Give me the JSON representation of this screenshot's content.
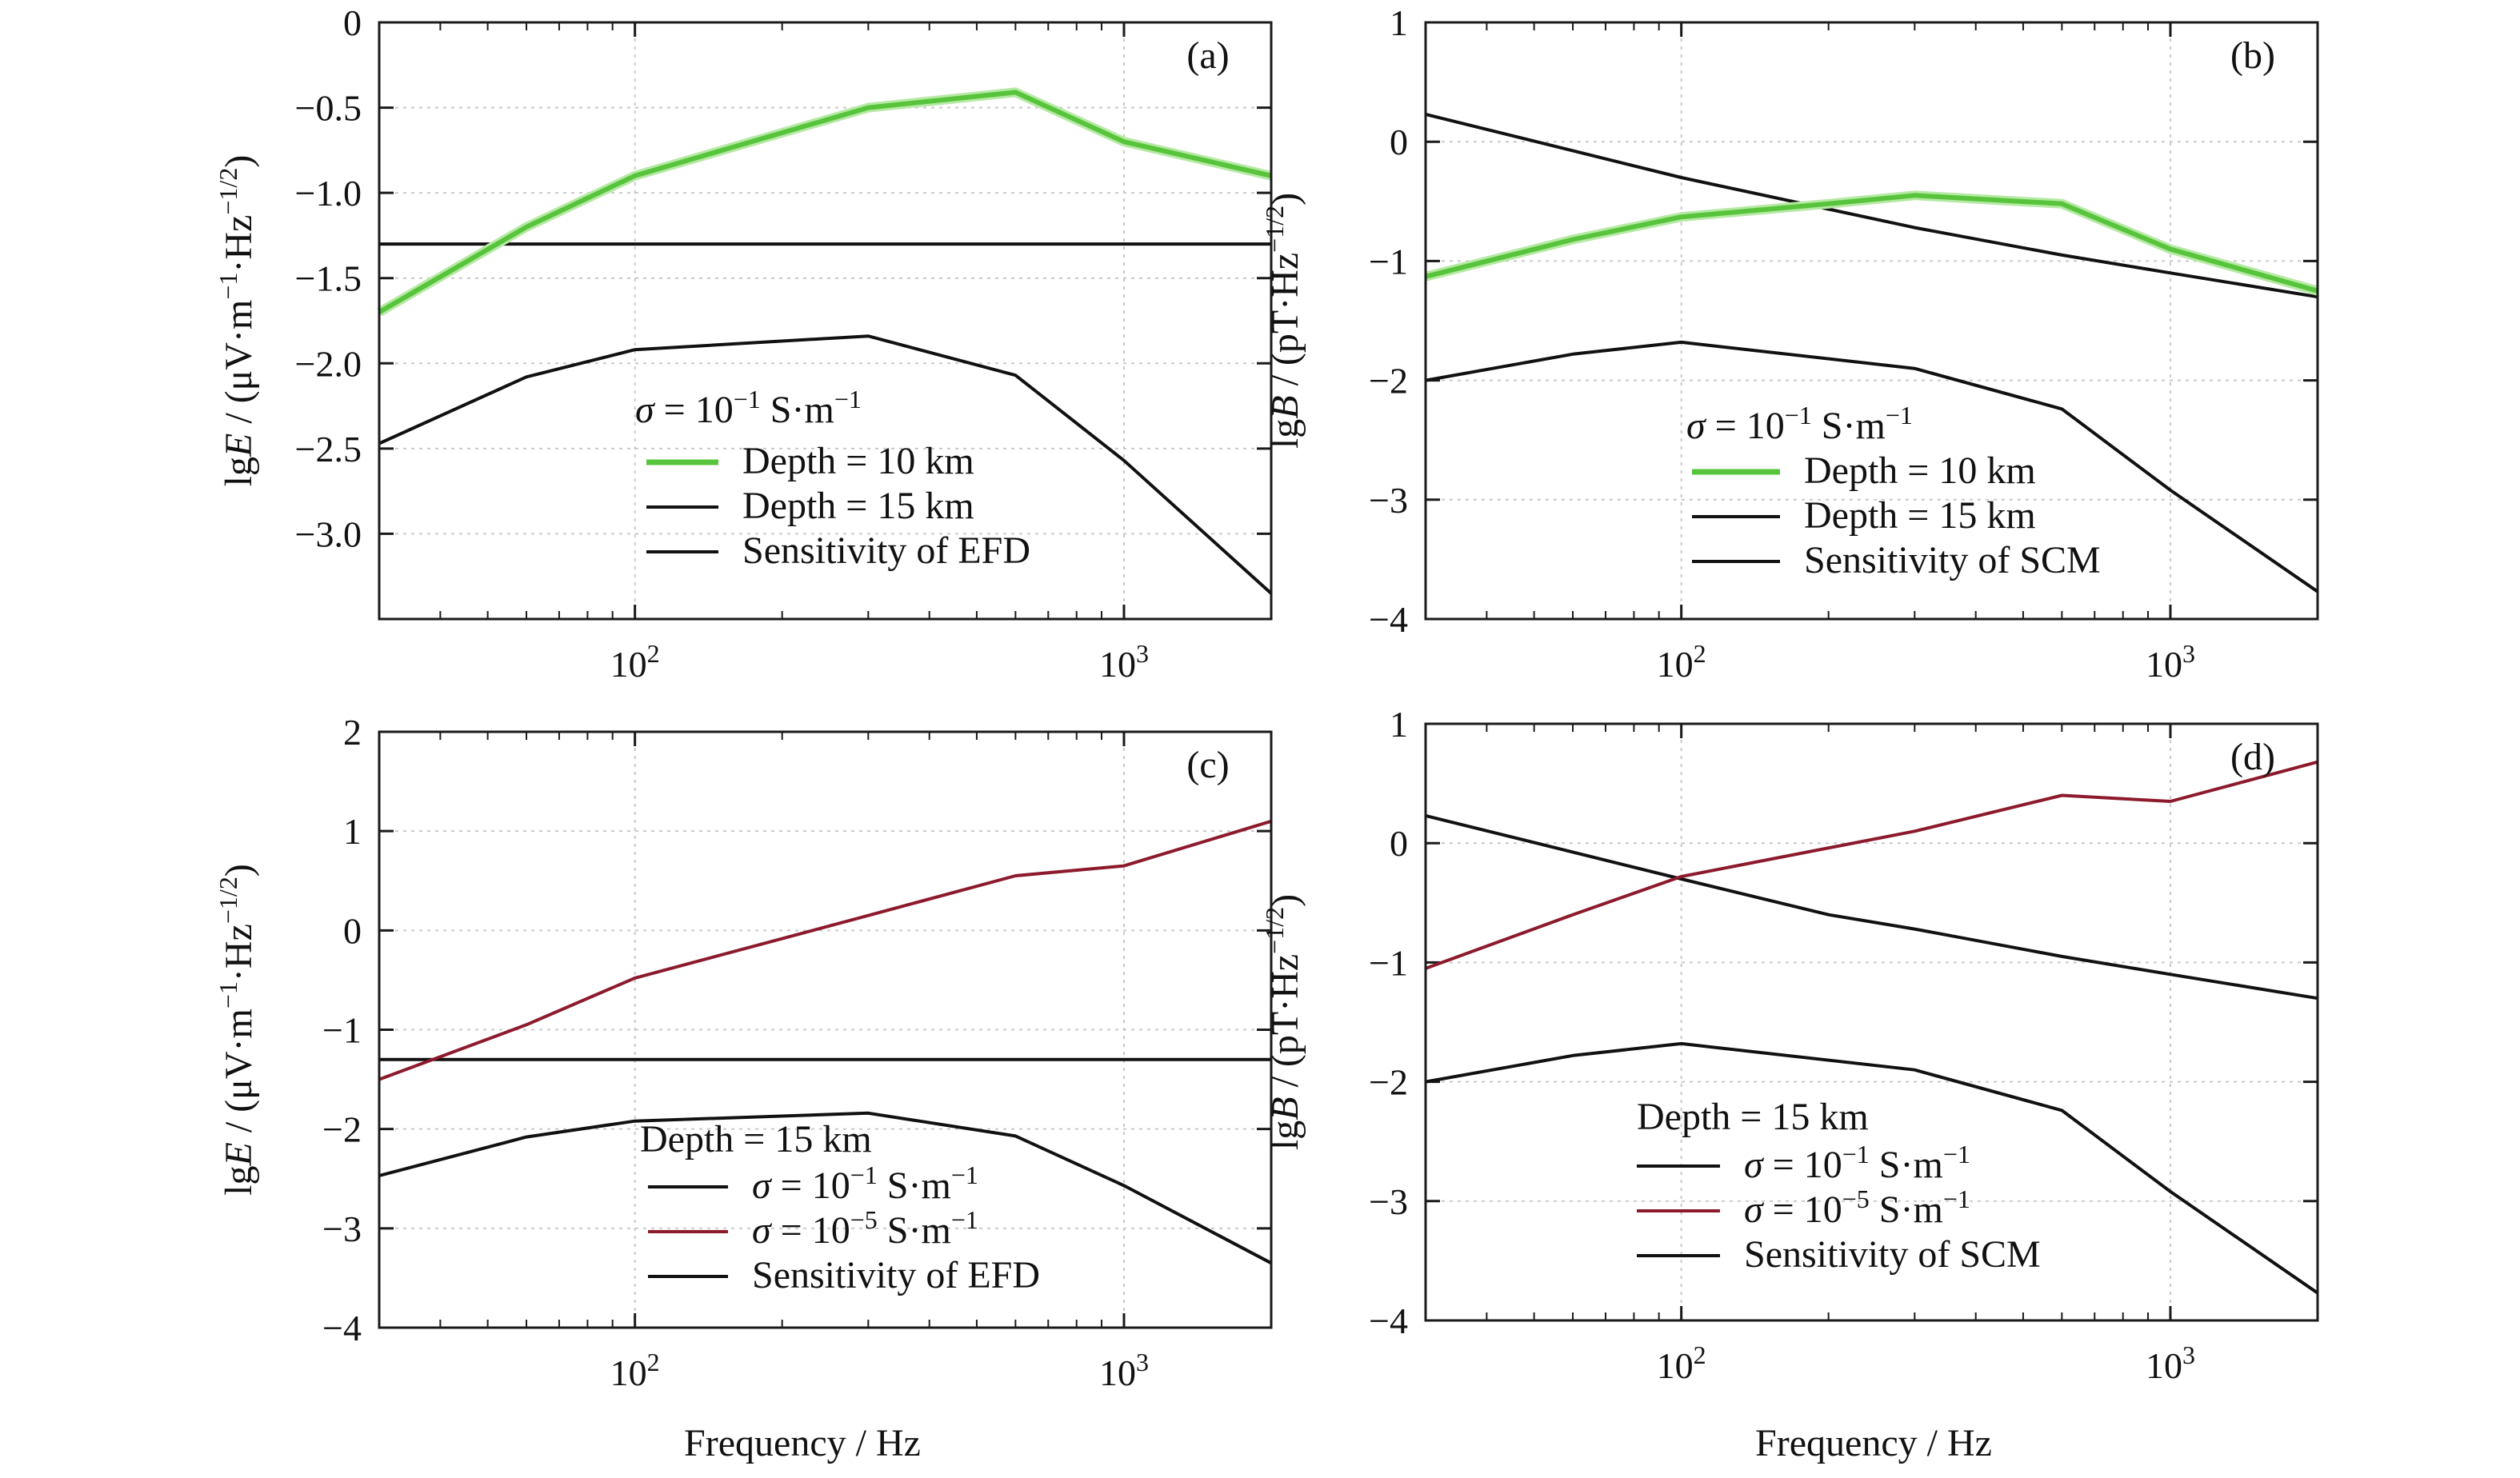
{
  "x_axis_label": "Frequency / Hz",
  "x_tick_labels": [
    {
      "base": "10",
      "exp": "2",
      "value": 100
    },
    {
      "base": "10",
      "exp": "3",
      "value": 1000
    }
  ],
  "colors": {
    "green": "#57c43c",
    "red": "#8c1a2c",
    "black": "#111111"
  },
  "chart_data": [
    {
      "panel": "(a)",
      "type": "line",
      "xscale": "log",
      "xlim": [
        30,
        2000
      ],
      "ylim": [
        -3.5,
        0
      ],
      "y_ticks": [
        0,
        -0.5,
        -1.0,
        -1.5,
        -2.0,
        -2.5,
        -3.0
      ],
      "y_tick_labels": [
        "0",
        "−0.5",
        "−1.0",
        "−1.5",
        "−2.0",
        "−2.5",
        "−3.0"
      ],
      "ylabel": {
        "prefix": "lg",
        "var": "E",
        "units": " / (μV·m",
        "sup1": "−1",
        "mid": "·Hz",
        "sup2": "−1/2",
        "end": ")"
      },
      "legend_title": {
        "kind": "sigma",
        "base": "10",
        "exp": "−1",
        "unit": "S·m",
        "uexp": "−1"
      },
      "series": [
        {
          "name": "Depth = 10 km",
          "color": "#57c43c",
          "x": [
            30,
            60,
            100,
            300,
            600,
            1000,
            2000
          ],
          "y": [
            -1.7,
            -1.2,
            -0.9,
            -0.5,
            -0.41,
            -0.7,
            -0.9
          ]
        },
        {
          "name": "Depth = 15 km",
          "color": "#111111",
          "x": [
            30,
            60,
            100,
            300,
            600,
            1000,
            2000
          ],
          "y": [
            -2.47,
            -2.08,
            -1.92,
            -1.84,
            -2.07,
            -2.57,
            -3.35
          ]
        },
        {
          "name": "Sensitivity of EFD",
          "color": "#111111",
          "x": [
            30,
            2000
          ],
          "y": [
            -1.3,
            -1.3
          ]
        }
      ]
    },
    {
      "panel": "(b)",
      "type": "line",
      "xscale": "log",
      "xlim": [
        30,
        2000
      ],
      "ylim": [
        -4,
        1
      ],
      "y_ticks": [
        1,
        0,
        -1,
        -2,
        -3,
        -4
      ],
      "y_tick_labels": [
        "1",
        "0",
        "−1",
        "−2",
        "−3",
        "−4"
      ],
      "ylabel": {
        "prefix": "lg",
        "var": "B",
        "units": " / (pT·Hz",
        "sup1": "−1/2",
        "mid": "",
        "sup2": "",
        "end": ")"
      },
      "legend_title": {
        "kind": "sigma",
        "base": "10",
        "exp": "−1",
        "unit": "S·m",
        "uexp": "−1"
      },
      "series": [
        {
          "name": "Depth = 10 km",
          "color": "#57c43c",
          "x": [
            30,
            60,
            100,
            200,
            300,
            600,
            1000,
            2000
          ],
          "y": [
            -1.13,
            -0.82,
            -0.63,
            -0.52,
            -0.45,
            -0.52,
            -0.9,
            -1.25
          ]
        },
        {
          "name": "Depth = 15 km",
          "color": "#111111",
          "x": [
            30,
            60,
            100,
            300,
            600,
            1000,
            2000
          ],
          "y": [
            -2.0,
            -1.78,
            -1.68,
            -1.9,
            -2.24,
            -2.92,
            -3.77
          ]
        },
        {
          "name": "Sensitivity of SCM",
          "color": "#111111",
          "x": [
            30,
            100,
            300,
            600,
            1000,
            2000
          ],
          "y": [
            0.23,
            -0.3,
            -0.72,
            -0.95,
            -1.1,
            -1.3
          ]
        }
      ]
    },
    {
      "panel": "(c)",
      "type": "line",
      "xscale": "log",
      "xlim": [
        30,
        2000
      ],
      "ylim": [
        -4,
        2
      ],
      "y_ticks": [
        2,
        1,
        0,
        -1,
        -2,
        -3,
        -4
      ],
      "y_tick_labels": [
        "2",
        "1",
        "0",
        "−1",
        "−2",
        "−3",
        "−4"
      ],
      "ylabel": {
        "prefix": "lg",
        "var": "E",
        "units": " / (μV·m",
        "sup1": "−1",
        "mid": "·Hz",
        "sup2": "−1/2",
        "end": ")"
      },
      "legend_title": {
        "kind": "text",
        "text": "Depth = 15 km"
      },
      "series": [
        {
          "name": "σ = 10⁻¹ S·m⁻¹",
          "label": {
            "base": "10",
            "exp": "−1",
            "unit": "S·m",
            "uexp": "−1"
          },
          "color": "#111111",
          "x": [
            30,
            60,
            100,
            300,
            600,
            1000,
            2000
          ],
          "y": [
            -2.47,
            -2.08,
            -1.92,
            -1.84,
            -2.07,
            -2.57,
            -3.35
          ]
        },
        {
          "name": "σ = 10⁻⁵ S·m⁻¹",
          "label": {
            "base": "10",
            "exp": "−5",
            "unit": "S·m",
            "uexp": "−1"
          },
          "color": "#8c1a2c",
          "x": [
            30,
            60,
            100,
            300,
            600,
            1000,
            2000
          ],
          "y": [
            -1.5,
            -0.95,
            -0.48,
            0.15,
            0.55,
            0.65,
            1.1
          ]
        },
        {
          "name": "Sensitivity of EFD",
          "color": "#111111",
          "x": [
            30,
            2000
          ],
          "y": [
            -1.3,
            -1.3
          ]
        }
      ]
    },
    {
      "panel": "(d)",
      "type": "line",
      "xscale": "log",
      "xlim": [
        30,
        2000
      ],
      "ylim": [
        -4,
        1
      ],
      "y_ticks": [
        1,
        0,
        -1,
        -2,
        -3,
        -4
      ],
      "y_tick_labels": [
        "1",
        "0",
        "−1",
        "−2",
        "−3",
        "−4"
      ],
      "ylabel": {
        "prefix": "lg",
        "var": "B",
        "units": " / (pT·Hz",
        "sup1": "−1/2",
        "mid": "",
        "sup2": "",
        "end": ")"
      },
      "legend_title": {
        "kind": "text",
        "text": "Depth = 15 km"
      },
      "series": [
        {
          "name": "σ = 10⁻¹ S·m⁻¹",
          "label": {
            "base": "10",
            "exp": "−1",
            "unit": "S·m",
            "uexp": "−1"
          },
          "color": "#111111",
          "x": [
            30,
            60,
            100,
            300,
            600,
            1000,
            2000
          ],
          "y": [
            -2.0,
            -1.78,
            -1.68,
            -1.9,
            -2.24,
            -2.92,
            -3.77
          ]
        },
        {
          "name": "σ = 10⁻⁵ S·m⁻¹",
          "label": {
            "base": "10",
            "exp": "−5",
            "unit": "S·m",
            "uexp": "−1"
          },
          "color": "#8c1a2c",
          "x": [
            30,
            60,
            100,
            300,
            600,
            1000,
            2000
          ],
          "y": [
            -1.05,
            -0.6,
            -0.28,
            0.1,
            0.4,
            0.35,
            0.68
          ]
        },
        {
          "name": "Sensitivity of SCM",
          "color": "#111111",
          "x": [
            30,
            100,
            200,
            300,
            600,
            1000,
            2000
          ],
          "y": [
            0.23,
            -0.3,
            -0.6,
            -0.72,
            -0.95,
            -1.1,
            -1.3
          ]
        }
      ]
    }
  ]
}
